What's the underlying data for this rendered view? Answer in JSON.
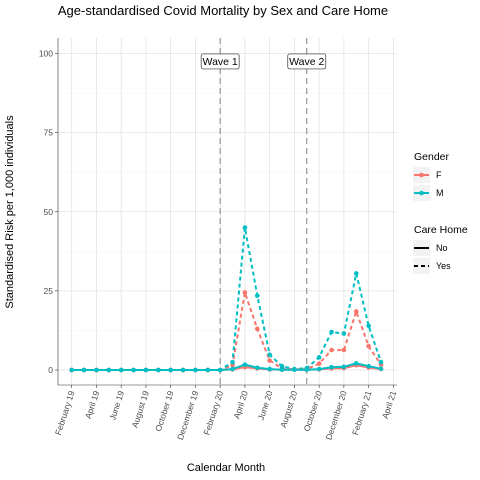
{
  "chart_data": {
    "type": "line",
    "title": "Age-standardised Covid Mortality by Sex and Care Home",
    "xlabel": "Calendar Month",
    "ylabel": "Standardised Risk per 1,000 individuals",
    "ylim": [
      0,
      100
    ],
    "y_ticks": [
      0,
      25,
      50,
      75,
      100
    ],
    "grid": true,
    "x_ticks": [
      "February 19",
      "April 19",
      "June 19",
      "August 19",
      "October 19",
      "December 19",
      "February 20",
      "April 20",
      "June 20",
      "August 20",
      "October 20",
      "December 20",
      "February 21",
      "April 21"
    ],
    "months": [
      "2019-02",
      "2019-03",
      "2019-04",
      "2019-05",
      "2019-06",
      "2019-07",
      "2019-08",
      "2019-09",
      "2019-10",
      "2019-11",
      "2019-12",
      "2020-01",
      "2020-02",
      "2020-03",
      "2020-04",
      "2020-05",
      "2020-06",
      "2020-07",
      "2020-08",
      "2020-09",
      "2020-10",
      "2020-11",
      "2020-12",
      "2021-01",
      "2021-02",
      "2021-03"
    ],
    "annotations": [
      {
        "label": "Wave 1",
        "x": "2020-02"
      },
      {
        "label": "Wave 2",
        "x": "2020-09"
      }
    ],
    "legend": {
      "placement": "right",
      "gender_title": "Gender",
      "gender_items": [
        {
          "label": "F",
          "color": "#F8766D"
        },
        {
          "label": "M",
          "color": "#00BFC4"
        }
      ],
      "care_title": "Care Home",
      "care_items": [
        {
          "label": "No",
          "dash": "solid"
        },
        {
          "label": "Yes",
          "dash": "dashed"
        }
      ]
    },
    "series": [
      {
        "gender": "F",
        "care_home": "No",
        "color": "#F8766D",
        "values": [
          0,
          0,
          0,
          0,
          0,
          0,
          0,
          0,
          0,
          0,
          0,
          0,
          0,
          0.2,
          0.9,
          0.5,
          0.2,
          0.1,
          0.1,
          0.1,
          0.2,
          0.5,
          0.6,
          1.5,
          0.8,
          0.3
        ]
      },
      {
        "gender": "M",
        "care_home": "No",
        "color": "#00BFC4",
        "values": [
          0,
          0,
          0,
          0,
          0,
          0,
          0,
          0,
          0,
          0,
          0,
          0,
          0,
          0.3,
          1.7,
          0.7,
          0.3,
          0.1,
          0.1,
          0.1,
          0.3,
          0.9,
          1.0,
          2.1,
          1.2,
          0.4
        ]
      },
      {
        "gender": "F",
        "care_home": "Yes",
        "color": "#F8766D",
        "values": [
          0,
          0,
          0,
          0,
          0,
          0,
          0,
          0,
          0,
          0,
          0,
          0,
          0,
          1.5,
          24.5,
          13.0,
          3.0,
          0.5,
          0.2,
          0.3,
          2.0,
          6.3,
          6.3,
          18.5,
          7.5,
          1.7
        ]
      },
      {
        "gender": "M",
        "care_home": "Yes",
        "color": "#00BFC4",
        "values": [
          0,
          0,
          0,
          0,
          0,
          0,
          0,
          0,
          0,
          0,
          0,
          0,
          0,
          2.5,
          45.0,
          23.5,
          4.8,
          1.2,
          0.3,
          0.6,
          4.0,
          12.0,
          11.5,
          30.5,
          14.0,
          2.5
        ]
      }
    ]
  }
}
